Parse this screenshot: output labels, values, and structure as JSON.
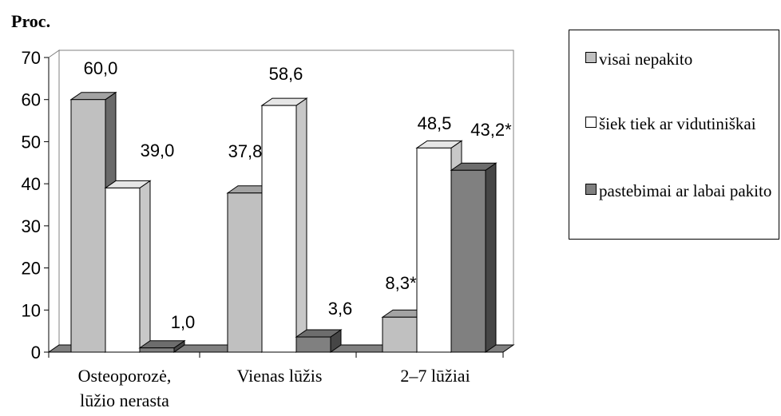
{
  "chart_data": {
    "type": "bar",
    "title": "",
    "ylabel": "Proc.",
    "xlabel": "",
    "ylim": [
      0,
      70
    ],
    "yticks": [
      0,
      10,
      20,
      30,
      40,
      50,
      60,
      70
    ],
    "grid": false,
    "legend_position": "right",
    "three_d": true,
    "categories": [
      [
        "Osteoporozė,",
        "lūžio nerasta"
      ],
      [
        "Vienas lūžis"
      ],
      [
        "2–7 lūžiai"
      ]
    ],
    "series": [
      {
        "name": "visai nepakito",
        "color": "#c0c0c0",
        "values": [
          60.0,
          37.8,
          8.3
        ],
        "labels": [
          "60,0",
          "37,8",
          "8,3*"
        ]
      },
      {
        "name": "šiek tiek ar vidutiniškai",
        "color": "#ffffff",
        "values": [
          39.0,
          58.6,
          48.5
        ],
        "labels": [
          "39,0",
          "58,6",
          "48,5"
        ]
      },
      {
        "name": "pastebimai ar labai pakito",
        "color": "#808080",
        "values": [
          1.0,
          3.6,
          43.2
        ],
        "labels": [
          "1,0",
          "3,6",
          "43,2*"
        ]
      }
    ]
  }
}
